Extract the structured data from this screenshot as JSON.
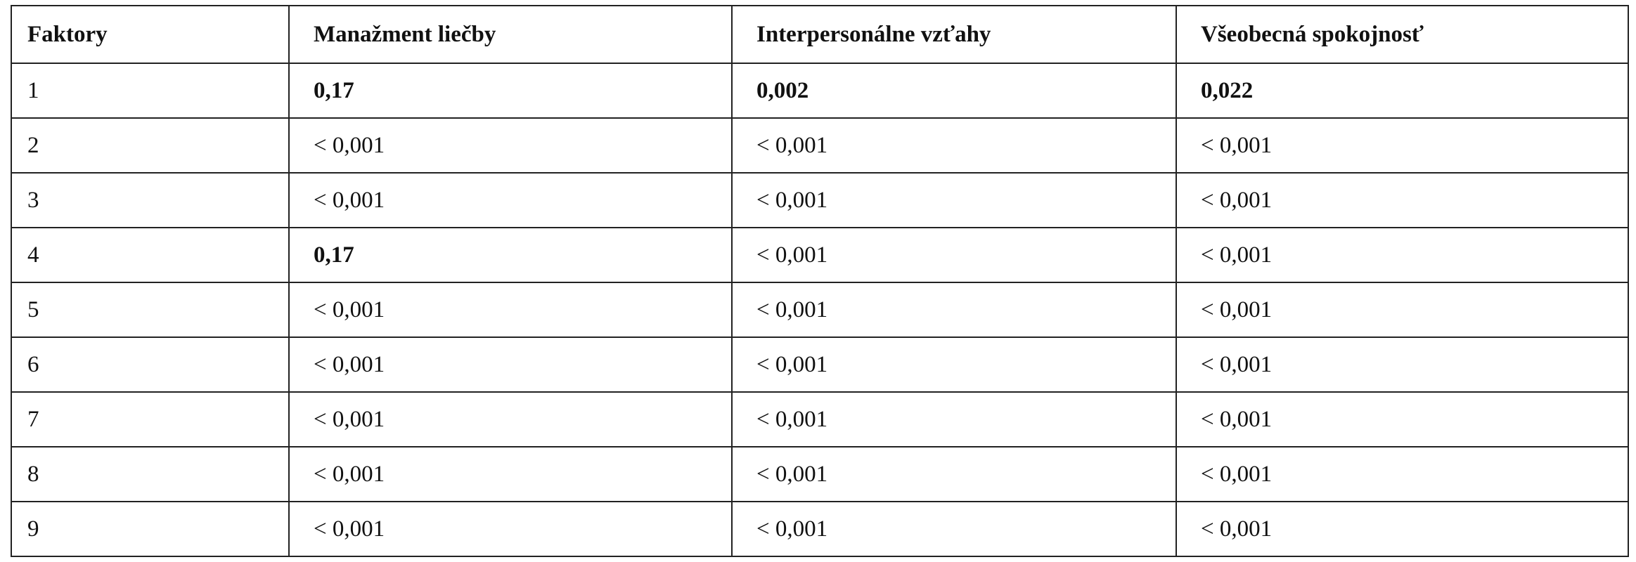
{
  "table": {
    "header": [
      "Faktory",
      "Manažment liečby",
      "Interpersonálne vzťahy",
      "Všeobecná spokojnosť"
    ],
    "rows": [
      [
        "1",
        "0,17",
        "0,002",
        "0,022"
      ],
      [
        "2",
        "< 0,001",
        "< 0,001",
        "< 0,001"
      ],
      [
        "3",
        "< 0,001",
        "< 0,001",
        "< 0,001"
      ],
      [
        "4",
        "0,17",
        "< 0,001",
        "< 0,001"
      ],
      [
        "5",
        "< 0,001",
        "< 0,001",
        "< 0,001"
      ],
      [
        "6",
        "< 0,001",
        "< 0,001",
        "< 0,001"
      ],
      [
        "7",
        "< 0,001",
        "< 0,001",
        "< 0,001"
      ],
      [
        "8",
        "< 0,001",
        "< 0,001",
        "< 0,001"
      ],
      [
        "9",
        "< 0,001",
        "< 0,001",
        "< 0,001"
      ]
    ]
  }
}
